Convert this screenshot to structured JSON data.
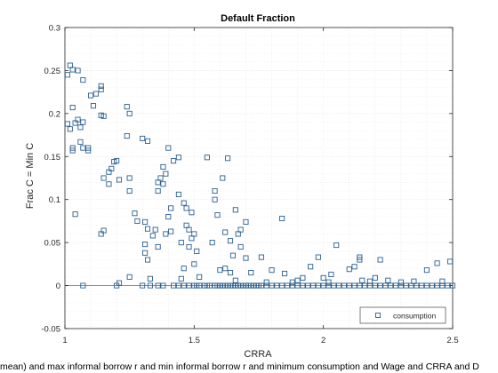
{
  "chart_data": {
    "type": "scatter",
    "title": "Default Fraction",
    "xlabel": "CRRA",
    "ylabel": "Frac C = Min C",
    "caption": "mean) and max informal borrow r and min informal borrow r and minimum consumption and Wage and CRRA and D",
    "xlim": [
      1,
      2.5
    ],
    "ylim": [
      -0.05,
      0.3
    ],
    "x_ticks": [
      1,
      1.5,
      2,
      2.5
    ],
    "x_tick_labels": [
      "1",
      "1.5",
      "2",
      "2.5"
    ],
    "y_ticks": [
      -0.05,
      0,
      0.05,
      0.1,
      0.15,
      0.2,
      0.25,
      0.3
    ],
    "y_tick_labels": [
      "-0.05",
      "0",
      "0.05",
      "0.1",
      "0.15",
      "0.2",
      "0.25",
      "0.3"
    ],
    "grid": true,
    "reference_line_y": 0,
    "legend_position": "bottom-right",
    "colors": {
      "marker": "#2b5f8f",
      "grid": "#e3e3e3",
      "axes": "#262626",
      "zero_line": "#808080"
    },
    "series": [
      {
        "name": "consumption",
        "marker": "square",
        "points": [
          [
            1.02,
            0.256
          ],
          [
            1.03,
            0.251
          ],
          [
            1.05,
            0.25
          ],
          [
            1.01,
            0.245
          ],
          [
            1.07,
            0.239
          ],
          [
            1.1,
            0.221
          ],
          [
            1.12,
            0.223
          ],
          [
            1.14,
            0.232
          ],
          [
            1.14,
            0.228
          ],
          [
            1.11,
            0.209
          ],
          [
            1.14,
            0.198
          ],
          [
            1.15,
            0.197
          ],
          [
            1.03,
            0.207
          ],
          [
            1.05,
            0.193
          ],
          [
            1.04,
            0.189
          ],
          [
            1.06,
            0.184
          ],
          [
            1.07,
            0.19
          ],
          [
            1.01,
            0.188
          ],
          [
            1.02,
            0.182
          ],
          [
            1.03,
            0.16
          ],
          [
            1.03,
            0.157
          ],
          [
            1.06,
            0.167
          ],
          [
            1.07,
            0.16
          ],
          [
            1.09,
            0.16
          ],
          [
            1.09,
            0.157
          ],
          [
            1.15,
            0.125
          ],
          [
            1.17,
            0.132
          ],
          [
            1.18,
            0.136
          ],
          [
            1.19,
            0.144
          ],
          [
            1.2,
            0.145
          ],
          [
            1.17,
            0.118
          ],
          [
            1.21,
            0.123
          ],
          [
            1.24,
            0.208
          ],
          [
            1.25,
            0.2
          ],
          [
            1.24,
            0.174
          ],
          [
            1.25,
            0.125
          ],
          [
            1.25,
            0.11
          ],
          [
            1.04,
            0.083
          ],
          [
            1.14,
            0.06
          ],
          [
            1.15,
            0.064
          ],
          [
            1.27,
            0.084
          ],
          [
            1.28,
            0.075
          ],
          [
            1.3,
            0.171
          ],
          [
            1.32,
            0.168
          ],
          [
            1.31,
            0.074
          ],
          [
            1.32,
            0.066
          ],
          [
            1.34,
            0.058
          ],
          [
            1.35,
            0.065
          ],
          [
            1.36,
            0.12
          ],
          [
            1.38,
            0.138
          ],
          [
            1.36,
            0.11
          ],
          [
            1.39,
            0.13
          ],
          [
            1.37,
            0.125
          ],
          [
            1.38,
            0.118
          ],
          [
            1.31,
            0.048
          ],
          [
            1.31,
            0.038
          ],
          [
            1.32,
            0.03
          ],
          [
            1.4,
            0.16
          ],
          [
            1.41,
            0.09
          ],
          [
            1.42,
            0.145
          ],
          [
            1.44,
            0.149
          ],
          [
            1.4,
            0.08
          ],
          [
            1.39,
            0.06
          ],
          [
            1.41,
            0.063
          ],
          [
            1.36,
            0.045
          ],
          [
            1.44,
            0.106
          ],
          [
            1.46,
            0.096
          ],
          [
            1.47,
            0.09
          ],
          [
            1.49,
            0.085
          ],
          [
            1.47,
            0.07
          ],
          [
            1.48,
            0.065
          ],
          [
            1.49,
            0.055
          ],
          [
            1.5,
            0.06
          ],
          [
            1.45,
            0.05
          ],
          [
            1.48,
            0.045
          ],
          [
            1.51,
            0.04
          ],
          [
            1.5,
            0.025
          ],
          [
            1.46,
            0.02
          ],
          [
            1.55,
            0.149
          ],
          [
            1.58,
            0.11
          ],
          [
            1.61,
            0.125
          ],
          [
            1.63,
            0.148
          ],
          [
            1.58,
            0.1
          ],
          [
            1.59,
            0.082
          ],
          [
            1.62,
            0.062
          ],
          [
            1.57,
            0.05
          ],
          [
            1.64,
            0.052
          ],
          [
            1.66,
            0.088
          ],
          [
            1.68,
            0.065
          ],
          [
            1.7,
            0.074
          ],
          [
            1.67,
            0.06
          ],
          [
            1.65,
            0.035
          ],
          [
            1.68,
            0.045
          ],
          [
            1.7,
            0.032
          ],
          [
            1.6,
            0.018
          ],
          [
            1.64,
            0.015
          ],
          [
            1.62,
            0.02
          ],
          [
            1.72,
            0.015
          ],
          [
            1.76,
            0.033
          ],
          [
            1.8,
            0.018
          ],
          [
            1.84,
            0.078
          ],
          [
            1.85,
            0.014
          ],
          [
            1.9,
            0.006
          ],
          [
            1.92,
            0.009
          ],
          [
            1.95,
            0.022
          ],
          [
            1.98,
            0.033
          ],
          [
            2.0,
            0.009
          ],
          [
            2.03,
            0.013
          ],
          [
            2.05,
            0.047
          ],
          [
            2.1,
            0.019
          ],
          [
            2.12,
            0.022
          ],
          [
            2.14,
            0.033
          ],
          [
            2.14,
            0.03
          ],
          [
            2.15,
            0.006
          ],
          [
            2.2,
            0.009
          ],
          [
            2.22,
            0.03
          ],
          [
            2.25,
            0.006
          ],
          [
            2.35,
            0.005
          ],
          [
            2.4,
            0.018
          ],
          [
            2.44,
            0.026
          ],
          [
            2.49,
            0.028
          ],
          [
            1.21,
            0.003
          ],
          [
            1.25,
            0.01
          ],
          [
            1.33,
            0.008
          ],
          [
            1.45,
            0.008
          ],
          [
            1.52,
            0.01
          ],
          [
            1.66,
            0.006
          ],
          [
            1.78,
            0.004
          ],
          [
            1.88,
            0.004
          ],
          [
            2.02,
            0.004
          ],
          [
            2.18,
            0.005
          ],
          [
            2.3,
            0.004
          ],
          [
            2.46,
            0.005
          ],
          [
            1.07,
            0.0
          ],
          [
            1.2,
            0.0
          ],
          [
            1.3,
            0.0
          ],
          [
            1.33,
            0.0
          ],
          [
            1.36,
            0.0
          ],
          [
            1.38,
            0.0
          ],
          [
            1.42,
            0.0
          ],
          [
            1.44,
            0.0
          ],
          [
            1.46,
            0.0
          ],
          [
            1.48,
            0.0
          ],
          [
            1.5,
            0.0
          ],
          [
            1.51,
            0.0
          ],
          [
            1.52,
            0.0
          ],
          [
            1.54,
            0.0
          ],
          [
            1.55,
            0.0
          ],
          [
            1.56,
            0.0
          ],
          [
            1.58,
            0.0
          ],
          [
            1.59,
            0.0
          ],
          [
            1.6,
            0.0
          ],
          [
            1.61,
            0.0
          ],
          [
            1.62,
            0.0
          ],
          [
            1.63,
            0.0
          ],
          [
            1.64,
            0.0
          ],
          [
            1.65,
            0.0
          ],
          [
            1.66,
            0.0
          ],
          [
            1.67,
            0.0
          ],
          [
            1.68,
            0.0
          ],
          [
            1.69,
            0.0
          ],
          [
            1.7,
            0.0
          ],
          [
            1.71,
            0.0
          ],
          [
            1.72,
            0.0
          ],
          [
            1.73,
            0.0
          ],
          [
            1.74,
            0.0
          ],
          [
            1.75,
            0.0
          ],
          [
            1.76,
            0.0
          ],
          [
            1.78,
            0.0
          ],
          [
            1.8,
            0.0
          ],
          [
            1.82,
            0.0
          ],
          [
            1.84,
            0.0
          ],
          [
            1.86,
            0.0
          ],
          [
            1.88,
            0.0
          ],
          [
            1.9,
            0.0
          ],
          [
            1.92,
            0.0
          ],
          [
            1.94,
            0.0
          ],
          [
            1.96,
            0.0
          ],
          [
            1.98,
            0.0
          ],
          [
            2.0,
            0.0
          ],
          [
            2.02,
            0.0
          ],
          [
            2.04,
            0.0
          ],
          [
            2.06,
            0.0
          ],
          [
            2.08,
            0.0
          ],
          [
            2.1,
            0.0
          ],
          [
            2.12,
            0.0
          ],
          [
            2.14,
            0.0
          ],
          [
            2.16,
            0.0
          ],
          [
            2.18,
            0.0
          ],
          [
            2.2,
            0.0
          ],
          [
            2.22,
            0.0
          ],
          [
            2.24,
            0.0
          ],
          [
            2.26,
            0.0
          ],
          [
            2.28,
            0.0
          ],
          [
            2.3,
            0.0
          ],
          [
            2.32,
            0.0
          ],
          [
            2.34,
            0.0
          ],
          [
            2.36,
            0.0
          ],
          [
            2.38,
            0.0
          ],
          [
            2.4,
            0.0
          ],
          [
            2.42,
            0.0
          ],
          [
            2.44,
            0.0
          ],
          [
            2.46,
            0.0
          ],
          [
            2.48,
            0.0
          ],
          [
            2.5,
            0.0
          ]
        ]
      }
    ]
  }
}
